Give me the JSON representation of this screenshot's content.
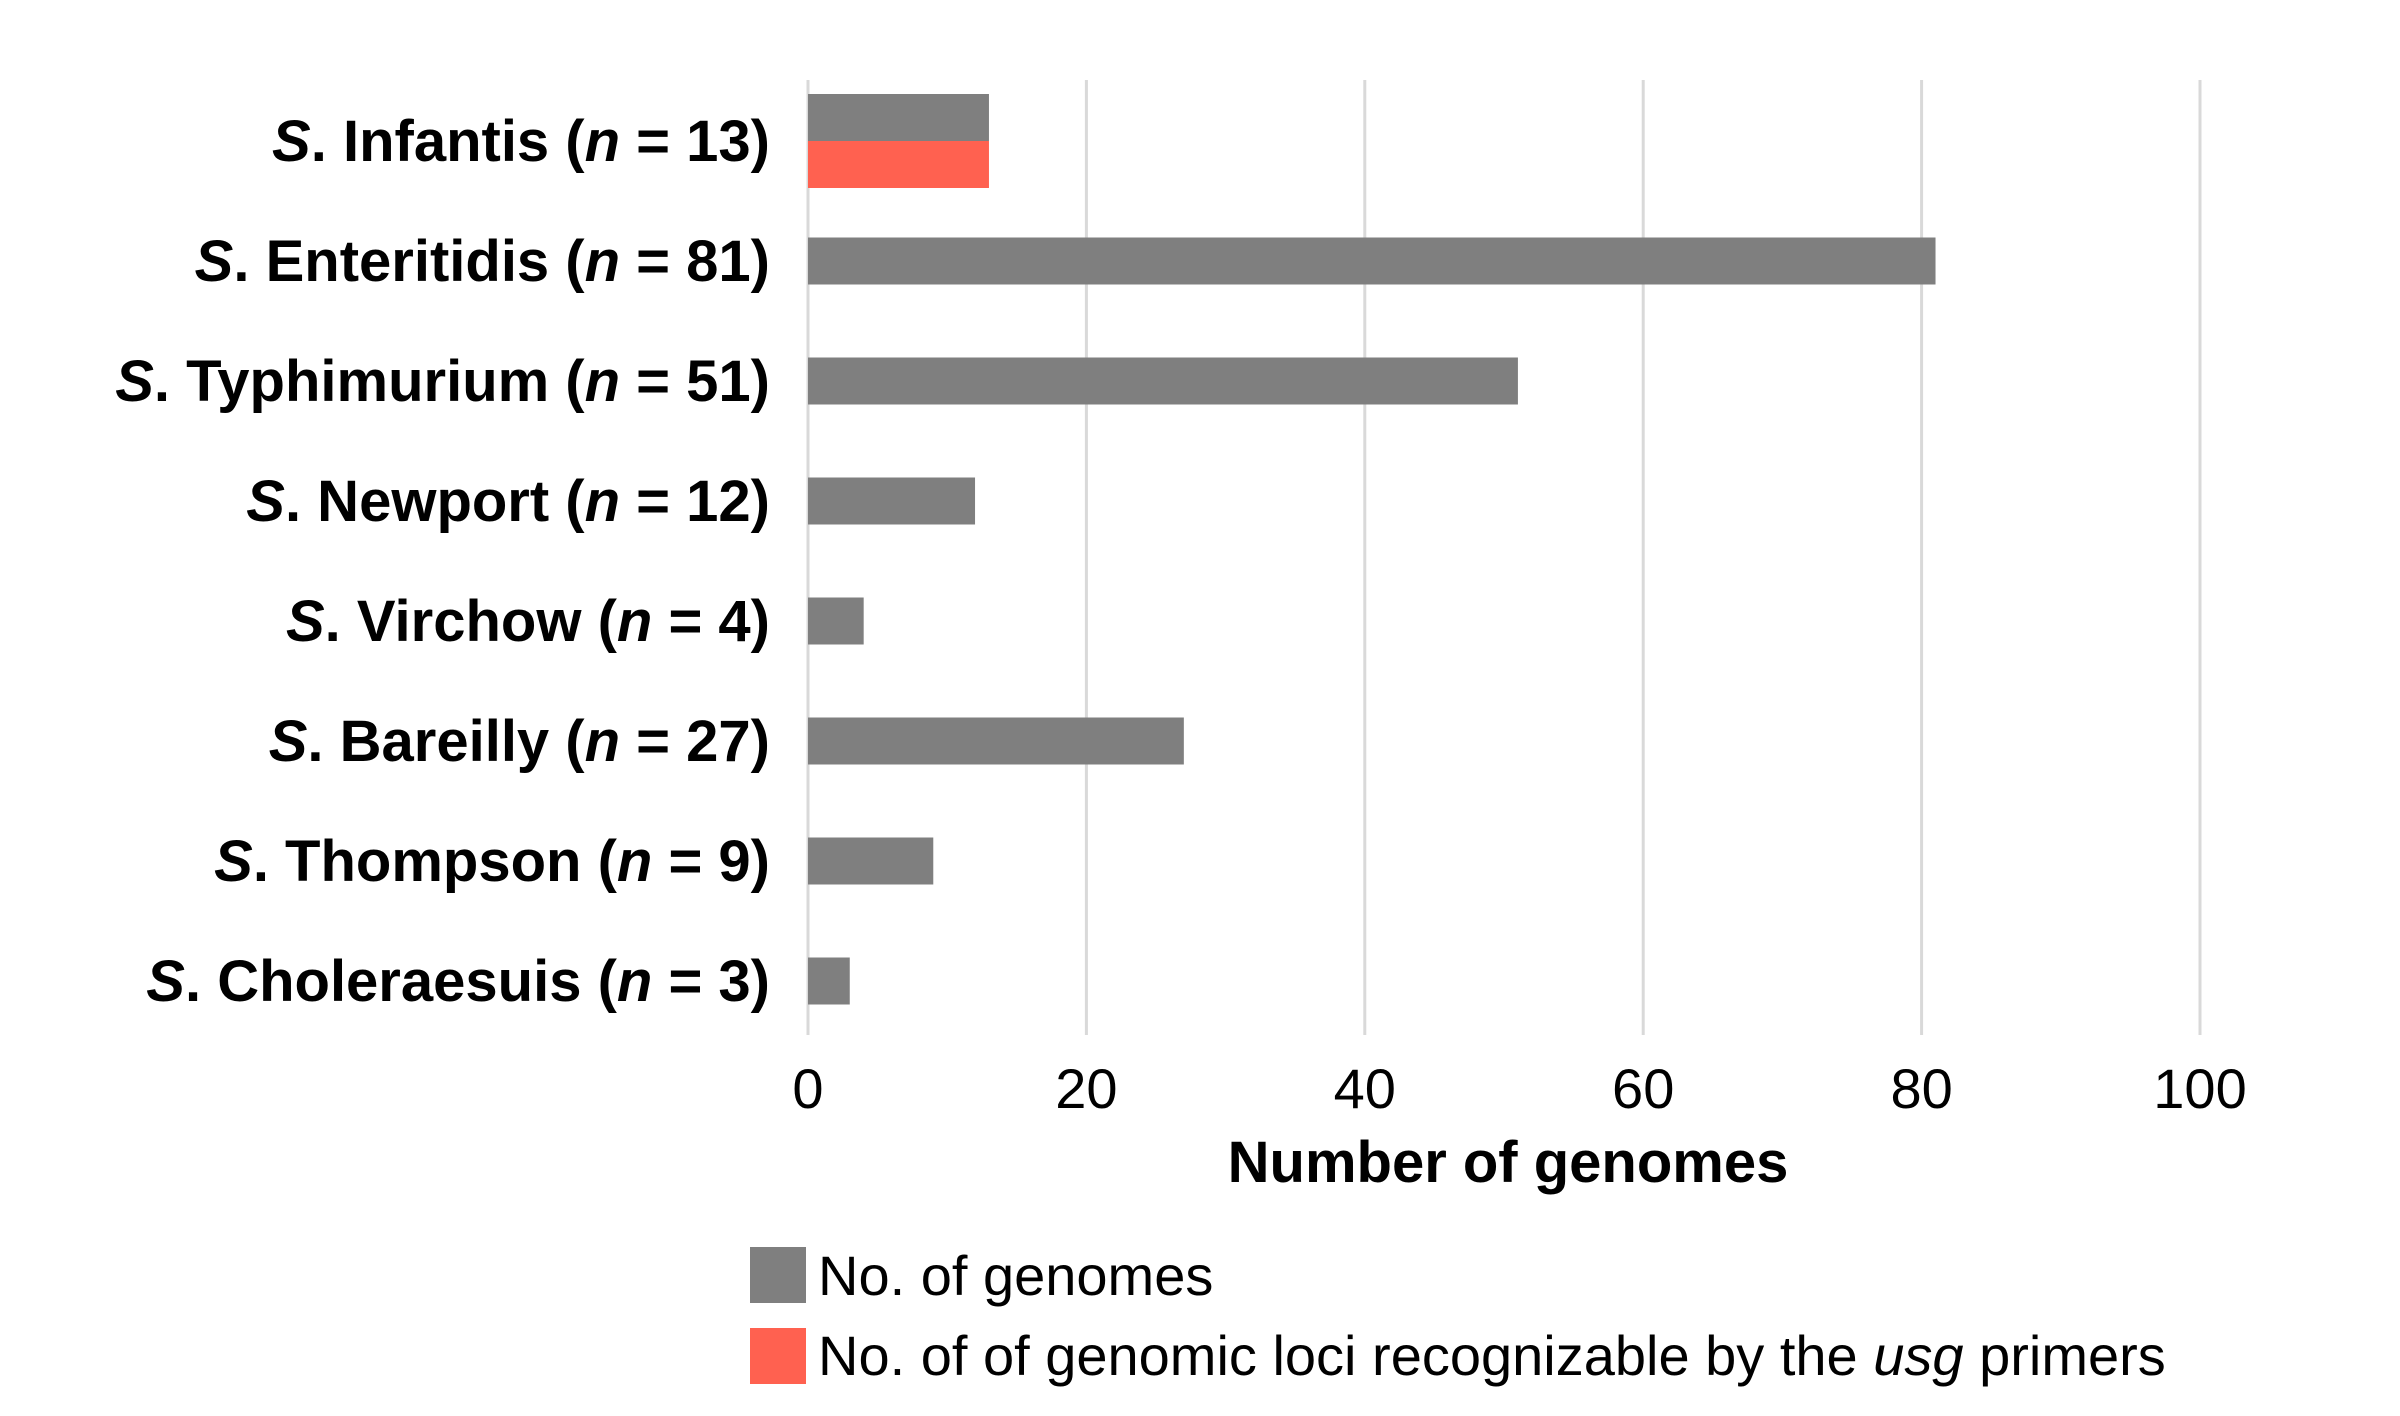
{
  "chart_data": {
    "type": "bar",
    "orientation": "horizontal",
    "categories": [
      {
        "prefix": "S",
        "name": ". Infantis (",
        "n_label": "n",
        "n_text": " = 13)"
      },
      {
        "prefix": "S",
        "name": ". Enteritidis (",
        "n_label": "n",
        "n_text": " = 81)"
      },
      {
        "prefix": "S",
        "name": ". Typhimurium (",
        "n_label": "n",
        "n_text": " = 51)"
      },
      {
        "prefix": "S",
        "name": ". Newport (",
        "n_label": "n",
        "n_text": " = 12)"
      },
      {
        "prefix": "S",
        "name": ". Virchow (",
        "n_label": "n",
        "n_text": " = 4)"
      },
      {
        "prefix": "S",
        "name": ". Bareilly (",
        "n_label": "n",
        "n_text": " = 27)"
      },
      {
        "prefix": "S",
        "name": ". Thompson (",
        "n_label": "n",
        "n_text": " = 9)"
      },
      {
        "prefix": "S",
        "name": ". Choleraesuis (",
        "n_label": "n",
        "n_text": " = 3)"
      }
    ],
    "series": [
      {
        "name": "No. of genomes",
        "color": "#7f7f7f",
        "values": [
          13,
          81,
          51,
          12,
          4,
          27,
          9,
          3
        ]
      },
      {
        "name": "No. of of genomic loci recognizable by the usg primers",
        "color": "#ff6150",
        "values": [
          13,
          0,
          0,
          0,
          0,
          0,
          0,
          0
        ]
      }
    ],
    "xlabel": "Number of genomes",
    "xlim": [
      0,
      100
    ],
    "xticks": [
      "0",
      "20",
      "40",
      "60",
      "80",
      "100"
    ],
    "grid": true,
    "legend_position": "bottom"
  },
  "legend": {
    "item1": "No. of genomes",
    "item2_prefix": "No. of of genomic loci recognizable by the ",
    "item2_italic": "usg",
    "item2_suffix": " primers"
  }
}
